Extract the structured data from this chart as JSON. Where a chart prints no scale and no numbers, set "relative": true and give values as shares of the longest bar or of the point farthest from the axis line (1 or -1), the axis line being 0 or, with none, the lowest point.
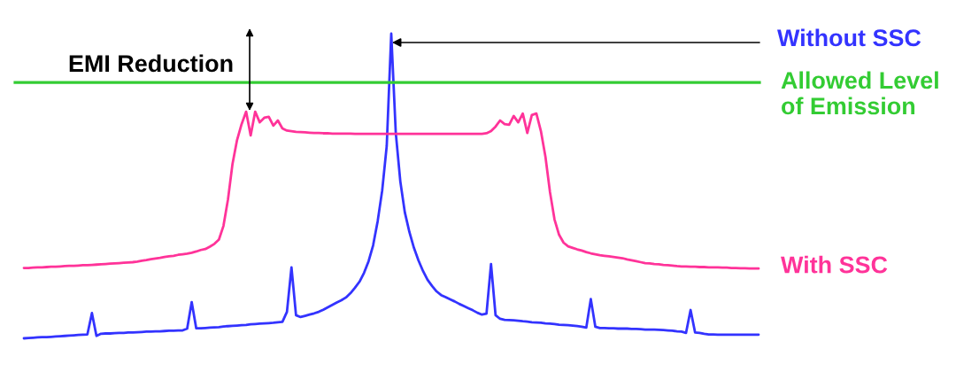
{
  "chart_data": {
    "type": "line",
    "relative": true,
    "categories": [
      null,
      null,
      null,
      null,
      null,
      null,
      null,
      null,
      null,
      null,
      null,
      null,
      null,
      null,
      null,
      null,
      null,
      null,
      null,
      null,
      null,
      null,
      null,
      null,
      null,
      null,
      null,
      null,
      null,
      null,
      null,
      null,
      null,
      null,
      null,
      null,
      null,
      null,
      null,
      null,
      null,
      null,
      null,
      null,
      null,
      null,
      null,
      null,
      null,
      null,
      null,
      null,
      null,
      null,
      null,
      null,
      null,
      null,
      null,
      null,
      null,
      null,
      null,
      null,
      null,
      null,
      null,
      null,
      null,
      null,
      null,
      null,
      null,
      null,
      null,
      null,
      null,
      null,
      null,
      null,
      null,
      null,
      null,
      null,
      null,
      null,
      null,
      null,
      null,
      null,
      null,
      null,
      null,
      null,
      null,
      null,
      null,
      null,
      null,
      null,
      null,
      null,
      null,
      null,
      null,
      null,
      null,
      null,
      null,
      null,
      null,
      null,
      null,
      null,
      null,
      null,
      null,
      null,
      null,
      null,
      null,
      null,
      null,
      null,
      null,
      null,
      null,
      null,
      null,
      null,
      null,
      null,
      null,
      null,
      null,
      null,
      null,
      null,
      null,
      null,
      null,
      null,
      null,
      null,
      null,
      null,
      null,
      null,
      null,
      null,
      null,
      null,
      null,
      null,
      null,
      null,
      null,
      null,
      null,
      null,
      null,
      null,
      null
    ],
    "series": [
      {
        "name": "Without SSC",
        "color": "#3333ff",
        "values": [
          0,
          0.001,
          0.002,
          0.003,
          0.004,
          0.004,
          0.005,
          0.006,
          0.007,
          0.008,
          0.009,
          0.01,
          0.011,
          0.012,
          0.013,
          0.083,
          0.008,
          0.015,
          0.016,
          0.016,
          0.017,
          0.018,
          0.018,
          0.019,
          0.019,
          0.02,
          0.021,
          0.022,
          0.022,
          0.023,
          0.023,
          0.024,
          0.025,
          0.025,
          0.026,
          0.026,
          0.032,
          0.119,
          0.033,
          0.033,
          0.034,
          0.035,
          0.036,
          0.037,
          0.039,
          0.04,
          0.041,
          0.042,
          0.043,
          0.044,
          0.046,
          0.047,
          0.048,
          0.049,
          0.05,
          0.051,
          0.053,
          0.054,
          0.087,
          0.233,
          0.076,
          0.07,
          0.074,
          0.078,
          0.082,
          0.087,
          0.094,
          0.102,
          0.11,
          0.118,
          0.125,
          0.134,
          0.148,
          0.166,
          0.186,
          0.215,
          0.253,
          0.305,
          0.384,
          0.485,
          0.631,
          1,
          0.674,
          0.515,
          0.413,
          0.349,
          0.297,
          0.256,
          0.221,
          0.192,
          0.172,
          0.154,
          0.142,
          0.135,
          0.128,
          0.121,
          0.113,
          0.106,
          0.099,
          0.092,
          0.084,
          0.078,
          0.081,
          0.244,
          0.076,
          0.064,
          0.061,
          0.06,
          0.059,
          0.058,
          0.056,
          0.055,
          0.053,
          0.052,
          0.051,
          0.049,
          0.048,
          0.047,
          0.045,
          0.044,
          0.043,
          0.042,
          0.04,
          0.038,
          0.035,
          0.129,
          0.038,
          0.034,
          0.034,
          0.033,
          0.033,
          0.032,
          0.032,
          0.032,
          0.031,
          0.031,
          0.03,
          0.029,
          0.029,
          0.029,
          0.028,
          0.027,
          0.026,
          0.025,
          0.023,
          0.022,
          0.018,
          0.093,
          0.019,
          0.018,
          0.015,
          0.013,
          0.013,
          0.012,
          0.012,
          0.012,
          0.012,
          0.012,
          0.012,
          0.012,
          0.012,
          0.012,
          0.012
        ]
      },
      {
        "name": "With SSC",
        "color": "#ff3399",
        "values": [
          0.231,
          0.231,
          0.232,
          0.233,
          0.233,
          0.234,
          0.235,
          0.235,
          0.236,
          0.237,
          0.238,
          0.238,
          0.239,
          0.24,
          0.24,
          0.241,
          0.242,
          0.243,
          0.244,
          0.245,
          0.246,
          0.247,
          0.248,
          0.249,
          0.25,
          0.252,
          0.255,
          0.257,
          0.26,
          0.262,
          0.264,
          0.267,
          0.269,
          0.271,
          0.274,
          0.276,
          0.278,
          0.281,
          0.285,
          0.29,
          0.293,
          0.301,
          0.31,
          0.324,
          0.369,
          0.456,
          0.573,
          0.651,
          0.703,
          0.744,
          0.666,
          0.744,
          0.709,
          0.724,
          0.727,
          0.698,
          0.715,
          0.689,
          0.682,
          0.68,
          0.678,
          0.677,
          0.676,
          0.675,
          0.674,
          0.674,
          0.673,
          0.673,
          0.672,
          0.672,
          0.672,
          0.672,
          0.672,
          0.671,
          0.671,
          0.671,
          0.671,
          0.671,
          0.671,
          0.671,
          0.671,
          0.671,
          0.671,
          0.671,
          0.671,
          0.671,
          0.671,
          0.671,
          0.671,
          0.671,
          0.671,
          0.671,
          0.671,
          0.671,
          0.671,
          0.671,
          0.671,
          0.671,
          0.671,
          0.671,
          0.671,
          0.671,
          0.673,
          0.68,
          0.695,
          0.715,
          0.703,
          0.701,
          0.73,
          0.709,
          0.738,
          0.674,
          0.733,
          0.738,
          0.68,
          0.596,
          0.48,
          0.39,
          0.34,
          0.314,
          0.302,
          0.297,
          0.292,
          0.288,
          0.283,
          0.279,
          0.276,
          0.273,
          0.271,
          0.269,
          0.267,
          0.265,
          0.263,
          0.259,
          0.256,
          0.253,
          0.25,
          0.247,
          0.246,
          0.244,
          0.243,
          0.241,
          0.24,
          0.239,
          0.237,
          0.236,
          0.236,
          0.235,
          0.235,
          0.234,
          0.234,
          0.233,
          0.233,
          0.233,
          0.232,
          0.232,
          0.231,
          0.231,
          0.23,
          0.23,
          0.229,
          0.229,
          0.229
        ]
      }
    ],
    "ref_lines": [
      {
        "axis": "y",
        "value": 0.84,
        "label": "Allowed Level\nof Emission",
        "color": "#33cc33"
      }
    ],
    "annotations": [
      "EMI Reduction"
    ]
  }
}
